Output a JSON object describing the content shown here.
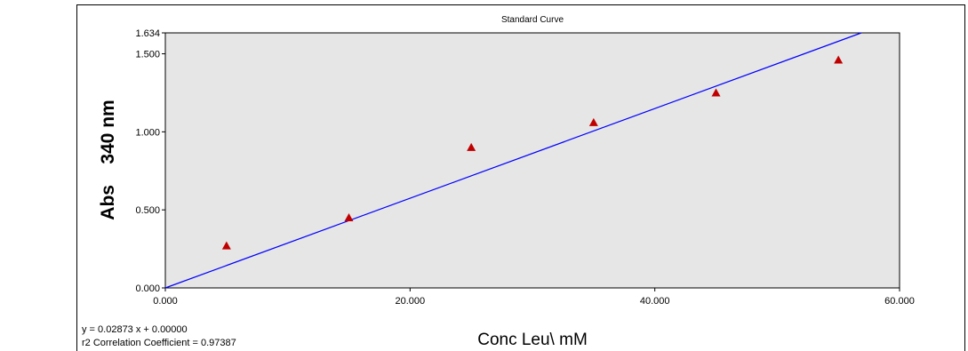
{
  "chart_data": {
    "type": "scatter",
    "title": "Standard Curve",
    "xlabel": "Conc Leu\\ mM",
    "ylabel": "Abs    340 nm",
    "xlim": [
      0,
      60
    ],
    "ylim": [
      0,
      1.634
    ],
    "x_ticks": [
      {
        "value": 0,
        "label": "0.000"
      },
      {
        "value": 20,
        "label": "20.000"
      },
      {
        "value": 40,
        "label": "40.000"
      },
      {
        "value": 60,
        "label": "60.000"
      }
    ],
    "y_ticks": [
      {
        "value": 0,
        "label": "0.000"
      },
      {
        "value": 0.5,
        "label": "0.500"
      },
      {
        "value": 1.0,
        "label": "1.000"
      },
      {
        "value": 1.5,
        "label": "1.500"
      },
      {
        "value": 1.634,
        "label": "1.634"
      }
    ],
    "series": [
      {
        "x": [
          5,
          15,
          25,
          35,
          45,
          55
        ],
        "y": [
          0.27,
          0.45,
          0.9,
          1.06,
          1.25,
          1.46
        ]
      }
    ],
    "fit_line": {
      "slope": 0.02873,
      "intercept": 0.0
    },
    "equation_text": "y = 0.02873 x + 0.00000",
    "r2_text": "r2 Correlation Coefficient = 0.97387",
    "grid": false,
    "legend": "none",
    "colors": {
      "plot_background": "#e6e6e6",
      "marker": "#c00000",
      "fit_line": "#0000ff"
    }
  }
}
